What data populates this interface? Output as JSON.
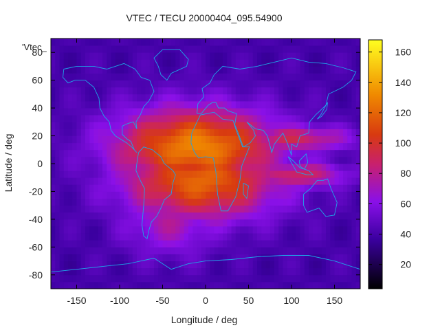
{
  "chart_data": {
    "type": "heatmap",
    "title": "VTEC / TECU 20000404_095.54900",
    "xlabel": "Longitude / deg",
    "ylabel": "Latitude / deg",
    "series_label": "'Vtec_",
    "xlim": [
      -180,
      180
    ],
    "ylim": [
      -90,
      90
    ],
    "xticks": [
      -150,
      -100,
      -50,
      0,
      50,
      100,
      150
    ],
    "yticks": [
      -80,
      -60,
      -40,
      -20,
      0,
      20,
      40,
      60,
      80
    ],
    "colorbar": {
      "range": [
        4,
        168
      ],
      "ticks": [
        20,
        40,
        60,
        80,
        100,
        120,
        140,
        160
      ]
    },
    "grid": false,
    "features": [
      {
        "lon": -10,
        "lat": 12,
        "lon_width": 95,
        "lat_width": 28,
        "peak": 130
      },
      {
        "lon": -5,
        "lat": -12,
        "lon_width": 90,
        "lat_width": 28,
        "peak": 120
      },
      {
        "lon": 100,
        "lat": 18,
        "lon_width": 70,
        "lat_width": 10,
        "peak": 90
      },
      {
        "lon": 105,
        "lat": -8,
        "lon_width": 60,
        "lat_width": 10,
        "peak": 90
      },
      {
        "lon": -40,
        "lat": -40,
        "lon_width": 55,
        "lat_width": 25,
        "peak": 75
      }
    ],
    "background_vtec": 40
  }
}
